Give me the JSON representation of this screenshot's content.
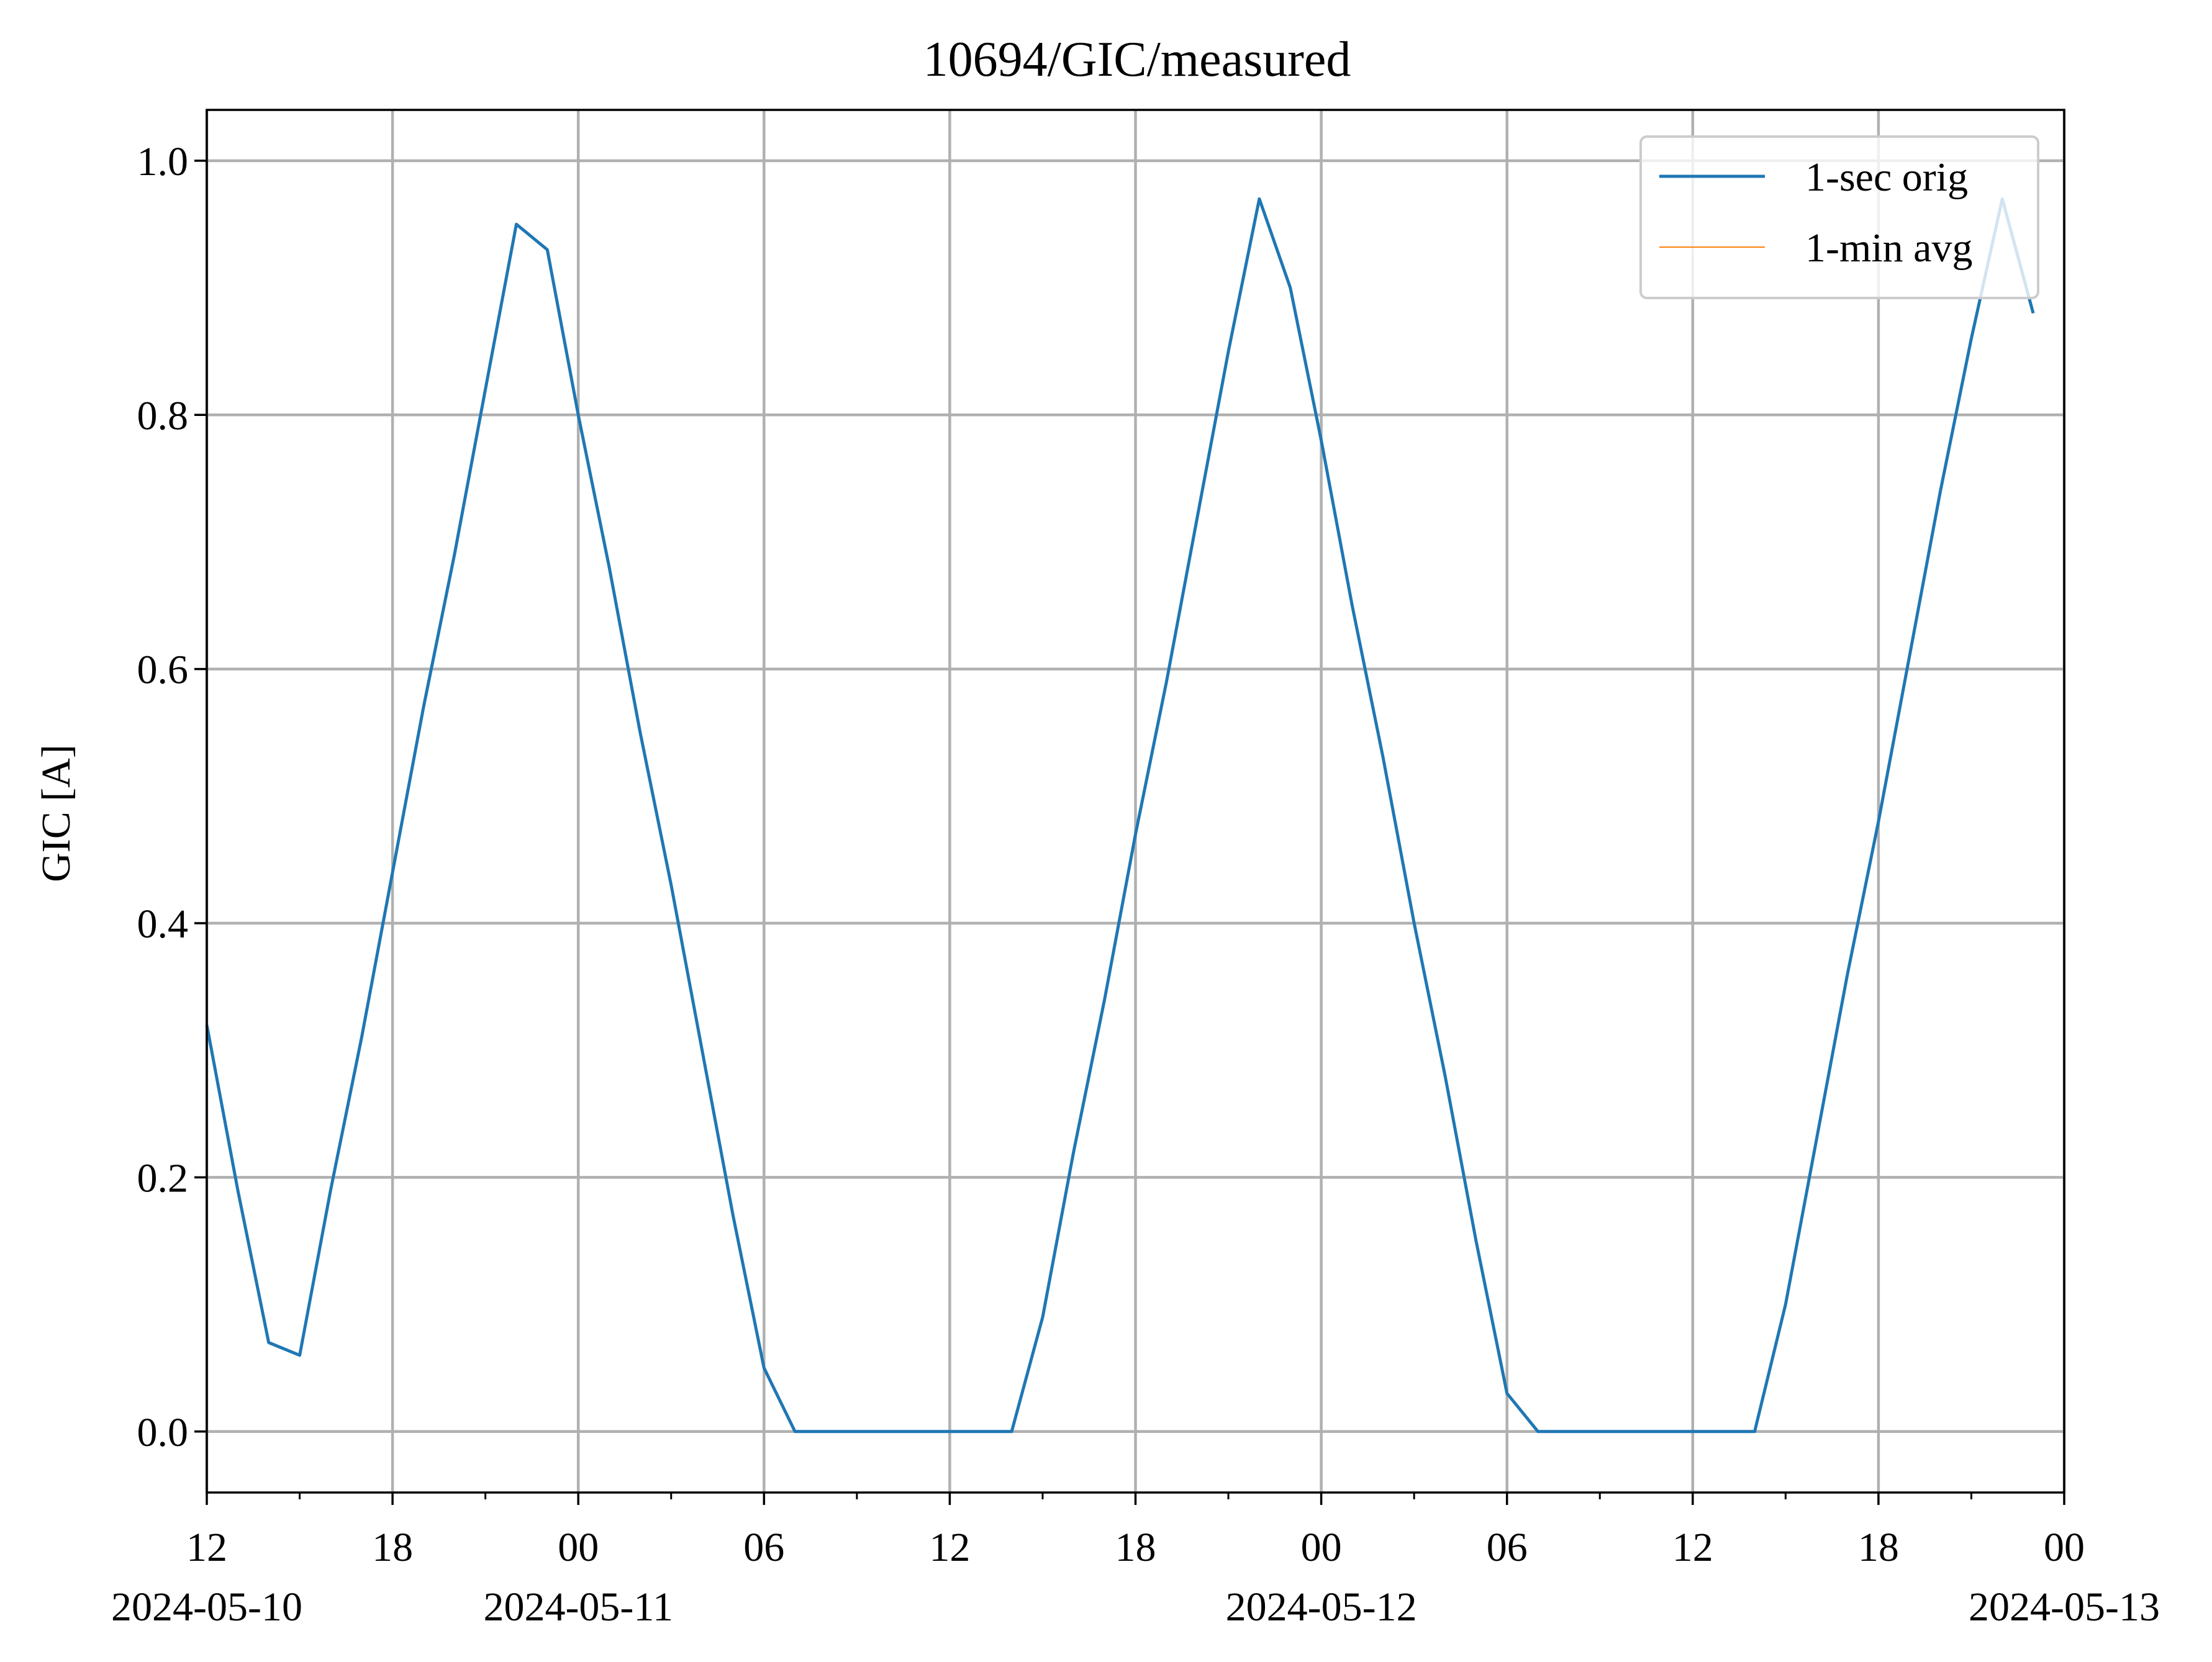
{
  "chart_data": {
    "type": "line",
    "title": "10694/GIC/measured",
    "xlabel": "",
    "ylabel": "GIC [A]",
    "xlim": [
      "2024-05-10T12:00",
      "2024-05-13T00:00"
    ],
    "ylim": [
      -0.048,
      1.04
    ],
    "grid": true,
    "legend_position": "upper right",
    "x_ticks": [
      {
        "at": "2024-05-10T12:00",
        "label": "12",
        "date_label": "2024-05-10"
      },
      {
        "at": "2024-05-10T18:00",
        "label": "18",
        "date_label": ""
      },
      {
        "at": "2024-05-11T00:00",
        "label": "00",
        "date_label": "2024-05-11"
      },
      {
        "at": "2024-05-11T06:00",
        "label": "06",
        "date_label": ""
      },
      {
        "at": "2024-05-11T12:00",
        "label": "12",
        "date_label": ""
      },
      {
        "at": "2024-05-11T18:00",
        "label": "18",
        "date_label": ""
      },
      {
        "at": "2024-05-12T00:00",
        "label": "00",
        "date_label": "2024-05-12"
      },
      {
        "at": "2024-05-12T06:00",
        "label": "06",
        "date_label": ""
      },
      {
        "at": "2024-05-12T12:00",
        "label": "12",
        "date_label": ""
      },
      {
        "at": "2024-05-12T18:00",
        "label": "18",
        "date_label": ""
      },
      {
        "at": "2024-05-13T00:00",
        "label": "00",
        "date_label": "2024-05-13"
      }
    ],
    "x_minor_ticks": [
      "2024-05-10T15:00",
      "2024-05-10T21:00",
      "2024-05-11T03:00",
      "2024-05-11T09:00",
      "2024-05-11T15:00",
      "2024-05-11T21:00",
      "2024-05-12T03:00",
      "2024-05-12T09:00",
      "2024-05-12T15:00",
      "2024-05-12T21:00"
    ],
    "y_ticks": [
      {
        "value": 0.0,
        "label": "0.0"
      },
      {
        "value": 0.2,
        "label": "0.2"
      },
      {
        "value": 0.4,
        "label": "0.4"
      },
      {
        "value": 0.6,
        "label": "0.6"
      },
      {
        "value": 0.8,
        "label": "0.8"
      },
      {
        "value": 1.0,
        "label": "1.0"
      }
    ],
    "series": [
      {
        "name": "1-sec orig",
        "color": "#1f77b4",
        "line_weight": "normal",
        "x": [
          "2024-05-10T12:00",
          "2024-05-10T13:00",
          "2024-05-10T14:00",
          "2024-05-10T15:00",
          "2024-05-10T16:00",
          "2024-05-10T17:00",
          "2024-05-10T18:00",
          "2024-05-10T19:00",
          "2024-05-10T20:00",
          "2024-05-10T21:00",
          "2024-05-10T22:00",
          "2024-05-10T23:00",
          "2024-05-11T00:00",
          "2024-05-11T01:00",
          "2024-05-11T02:00",
          "2024-05-11T03:00",
          "2024-05-11T04:00",
          "2024-05-11T05:00",
          "2024-05-11T06:00",
          "2024-05-11T07:00",
          "2024-05-11T08:00",
          "2024-05-11T09:00",
          "2024-05-11T10:00",
          "2024-05-11T11:00",
          "2024-05-11T12:00",
          "2024-05-11T13:00",
          "2024-05-11T14:00",
          "2024-05-11T15:00",
          "2024-05-11T16:00",
          "2024-05-11T17:00",
          "2024-05-11T18:00",
          "2024-05-11T19:00",
          "2024-05-11T20:00",
          "2024-05-11T21:00",
          "2024-05-11T22:00",
          "2024-05-11T23:00",
          "2024-05-12T00:00",
          "2024-05-12T01:00",
          "2024-05-12T02:00",
          "2024-05-12T03:00",
          "2024-05-12T04:00",
          "2024-05-12T05:00",
          "2024-05-12T06:00",
          "2024-05-12T07:00",
          "2024-05-12T08:00",
          "2024-05-12T09:00",
          "2024-05-12T10:00",
          "2024-05-12T11:00",
          "2024-05-12T12:00",
          "2024-05-12T13:00",
          "2024-05-12T14:00",
          "2024-05-12T15:00",
          "2024-05-12T16:00",
          "2024-05-12T17:00",
          "2024-05-12T18:00",
          "2024-05-12T19:00",
          "2024-05-12T20:00",
          "2024-05-12T21:00",
          "2024-05-12T22:00",
          "2024-05-12T23:00"
        ],
        "values": [
          0.32,
          0.19,
          0.07,
          0.06,
          0.19,
          0.31,
          0.44,
          0.57,
          0.69,
          0.82,
          0.95,
          0.93,
          0.8,
          0.68,
          0.55,
          0.43,
          0.3,
          0.17,
          0.05,
          0.0,
          0.0,
          0.0,
          0.0,
          0.0,
          0.0,
          0.0,
          0.0,
          0.09,
          0.22,
          0.34,
          0.47,
          0.59,
          0.72,
          0.85,
          0.97,
          0.9,
          0.78,
          0.65,
          0.53,
          0.4,
          0.28,
          0.15,
          0.03,
          0.0,
          0.0,
          0.0,
          0.0,
          0.0,
          0.0,
          0.0,
          0.0,
          0.1,
          0.23,
          0.36,
          0.48,
          0.61,
          0.74,
          0.86,
          0.97,
          0.88
        ]
      },
      {
        "name": "1-min avg",
        "color": "#ff7f0e",
        "line_weight": "thin",
        "x": [],
        "values": []
      }
    ]
  }
}
